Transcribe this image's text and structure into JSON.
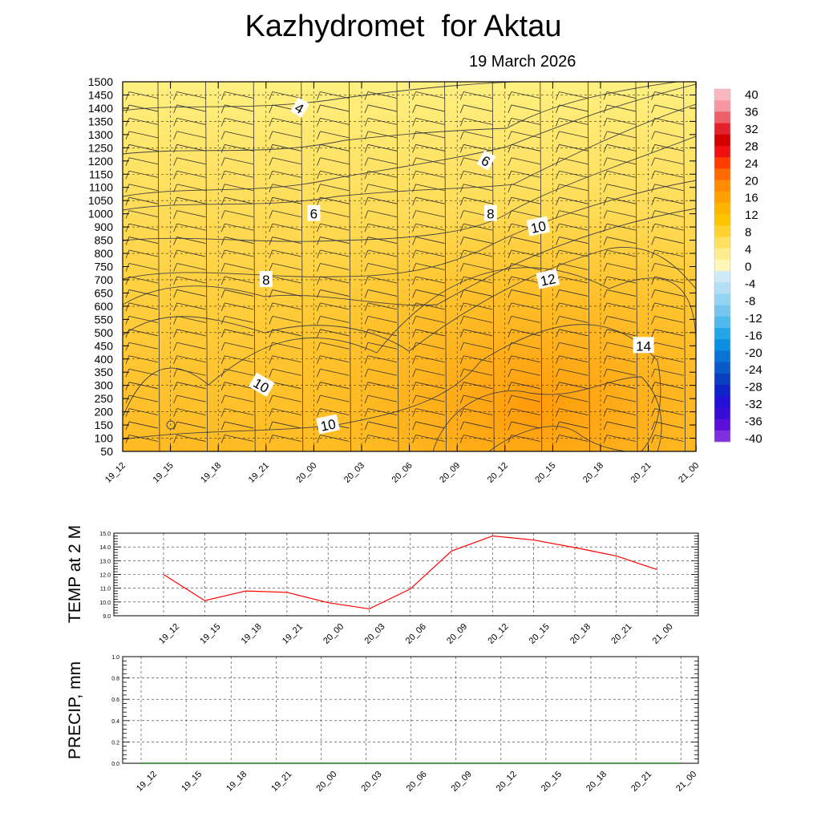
{
  "title": "Kazhydromet  for Aktau",
  "date": "19 March 2026",
  "chart_data": [
    {
      "type": "heatmap",
      "name": "vertical-cross-section",
      "x_labels": [
        "19_12",
        "19_15",
        "19_18",
        "19_21",
        "20_00",
        "20_03",
        "20_06",
        "20_09",
        "20_12",
        "20_15",
        "20_18",
        "20_21",
        "21_00"
      ],
      "y_ticks": [
        50,
        100,
        150,
        200,
        250,
        300,
        350,
        400,
        450,
        500,
        550,
        600,
        650,
        700,
        750,
        800,
        850,
        900,
        1000,
        1050,
        1100,
        1150,
        1200,
        1250,
        1300,
        1350,
        1400,
        1450,
        1500
      ],
      "ylim": [
        50,
        1500
      ],
      "contour_labels": [
        {
          "text": "4",
          "t": 3.7,
          "h": 1400
        },
        {
          "text": "6",
          "t": 7.6,
          "h": 1200
        },
        {
          "text": "6",
          "t": 4.0,
          "h": 1000
        },
        {
          "text": "8",
          "t": 7.7,
          "h": 1000
        },
        {
          "text": "10",
          "t": 8.7,
          "h": 900
        },
        {
          "text": "8",
          "t": 3.0,
          "h": 700
        },
        {
          "text": "12",
          "t": 8.9,
          "h": 700
        },
        {
          "text": "14",
          "t": 10.9,
          "h": 450
        },
        {
          "text": "10",
          "t": 2.9,
          "h": 300
        },
        {
          "text": "10",
          "t": 4.3,
          "h": 150
        }
      ],
      "colorbar": {
        "labels": [
          "40",
          "36",
          "32",
          "28",
          "24",
          "20",
          "16",
          "12",
          "8",
          "4",
          "0",
          "-4",
          "-8",
          "-12",
          "-16",
          "-20",
          "-24",
          "-28",
          "-32",
          "-36",
          "-40"
        ],
        "colors": [
          "#f9b7bf",
          "#f597a0",
          "#ee5f6a",
          "#e3222e",
          "#d40000",
          "#f01010",
          "#ff3c00",
          "#ff6a00",
          "#ff8c00",
          "#ffa000",
          "#ffb400",
          "#ffc400",
          "#ffd230",
          "#ffe060",
          "#ffec90",
          "#fff6b8",
          "#cfeaf7",
          "#b3def4",
          "#94d3f2",
          "#74c6ef",
          "#50b8ec",
          "#22a6e8",
          "#0c8fe0",
          "#0a74d6",
          "#0a5ac9",
          "#0b3ec0",
          "#0f24c7",
          "#2212d7",
          "#3a0cd8",
          "#5a10d8",
          "#7f2ee0"
        ]
      }
    },
    {
      "type": "line",
      "name": "temp-2m",
      "ylabel": "TEMP at 2 M",
      "x": [
        "19_12",
        "19_15",
        "19_18",
        "19_21",
        "20_00",
        "20_03",
        "20_06",
        "20_09",
        "20_12",
        "20_15",
        "20_18",
        "20_21",
        "21_00"
      ],
      "series": [
        {
          "name": "TEMP at 2 M",
          "color": "#ff0000",
          "values": [
            12.0,
            10.1,
            10.8,
            10.7,
            9.95,
            9.5,
            10.95,
            13.7,
            14.8,
            14.5,
            13.95,
            13.35,
            12.35
          ]
        }
      ],
      "ylim": [
        9.0,
        15.0
      ],
      "y_ticks": [
        "9.0",
        "10.0",
        "11.0",
        "12.0",
        "13.0",
        "14.0",
        "15.0"
      ]
    },
    {
      "type": "line",
      "name": "precip",
      "ylabel": "PRECIP, mm",
      "x": [
        "19_12",
        "19_15",
        "19_18",
        "19_21",
        "20_00",
        "20_03",
        "20_06",
        "20_09",
        "20_12",
        "20_15",
        "20_18",
        "20_21",
        "21_00"
      ],
      "series": [
        {
          "name": "PRECIP, mm",
          "color": "#1a7a1a",
          "values": [
            0,
            0,
            0,
            0,
            0,
            0,
            0,
            0,
            0,
            0,
            0,
            0,
            0
          ]
        }
      ],
      "ylim": [
        0.0,
        1.0
      ],
      "y_ticks": [
        "0.0",
        "0.2",
        "0.4",
        "0.6",
        "0.8",
        "1.0"
      ]
    }
  ]
}
